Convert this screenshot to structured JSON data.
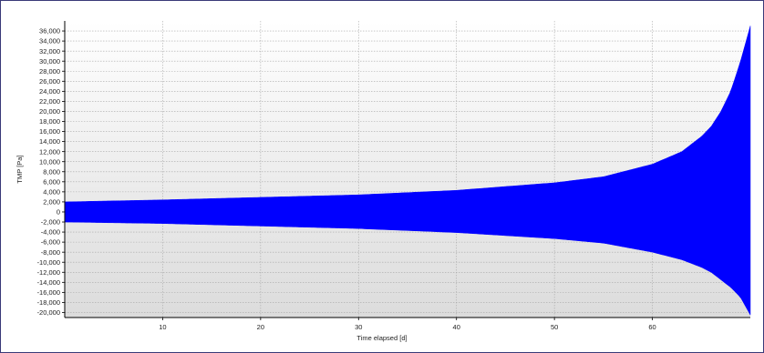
{
  "chart_data": {
    "type": "area",
    "title": "",
    "xlabel": "Time elapsed [d]",
    "ylabel": "TMP [Pa]",
    "xlim": [
      0,
      70
    ],
    "ylim": [
      -21000,
      38000
    ],
    "x_ticks": [
      10,
      20,
      30,
      40,
      50,
      60
    ],
    "y_ticks": [
      -20000,
      -18000,
      -16000,
      -14000,
      -12000,
      -10000,
      -8000,
      -6000,
      -4000,
      -2000,
      0,
      2000,
      4000,
      6000,
      8000,
      10000,
      12000,
      14000,
      16000,
      18000,
      20000,
      22000,
      24000,
      26000,
      28000,
      30000,
      32000,
      34000,
      36000
    ],
    "y_tick_labels": [
      "-20,000",
      "-18,000",
      "-16,000",
      "-14,000",
      "-12,000",
      "-10,000",
      "-8,000",
      "-6,000",
      "-4,000",
      "-2,000",
      "0",
      "2,000",
      "4,000",
      "6,000",
      "8,000",
      "10,000",
      "12,000",
      "14,000",
      "16,000",
      "18,000",
      "20,000",
      "22,000",
      "24,000",
      "26,000",
      "28,000",
      "30,000",
      "32,000",
      "34,000",
      "36,000"
    ],
    "grid": true,
    "series": [
      {
        "color": "#0000ff",
        "x": [
          0,
          10,
          20,
          30,
          40,
          50,
          55,
          60,
          63,
          65,
          66,
          67,
          68,
          69,
          70
        ],
        "upper": [
          2000,
          2400,
          2900,
          3400,
          4300,
          5800,
          7000,
          9500,
          12000,
          15000,
          17000,
          20000,
          24000,
          30000,
          37000
        ],
        "lower": [
          -2000,
          -2300,
          -2800,
          -3300,
          -4100,
          -5300,
          -6200,
          -8000,
          -9500,
          -11000,
          -12000,
          -13500,
          -15000,
          -17000,
          -20500
        ]
      }
    ]
  }
}
